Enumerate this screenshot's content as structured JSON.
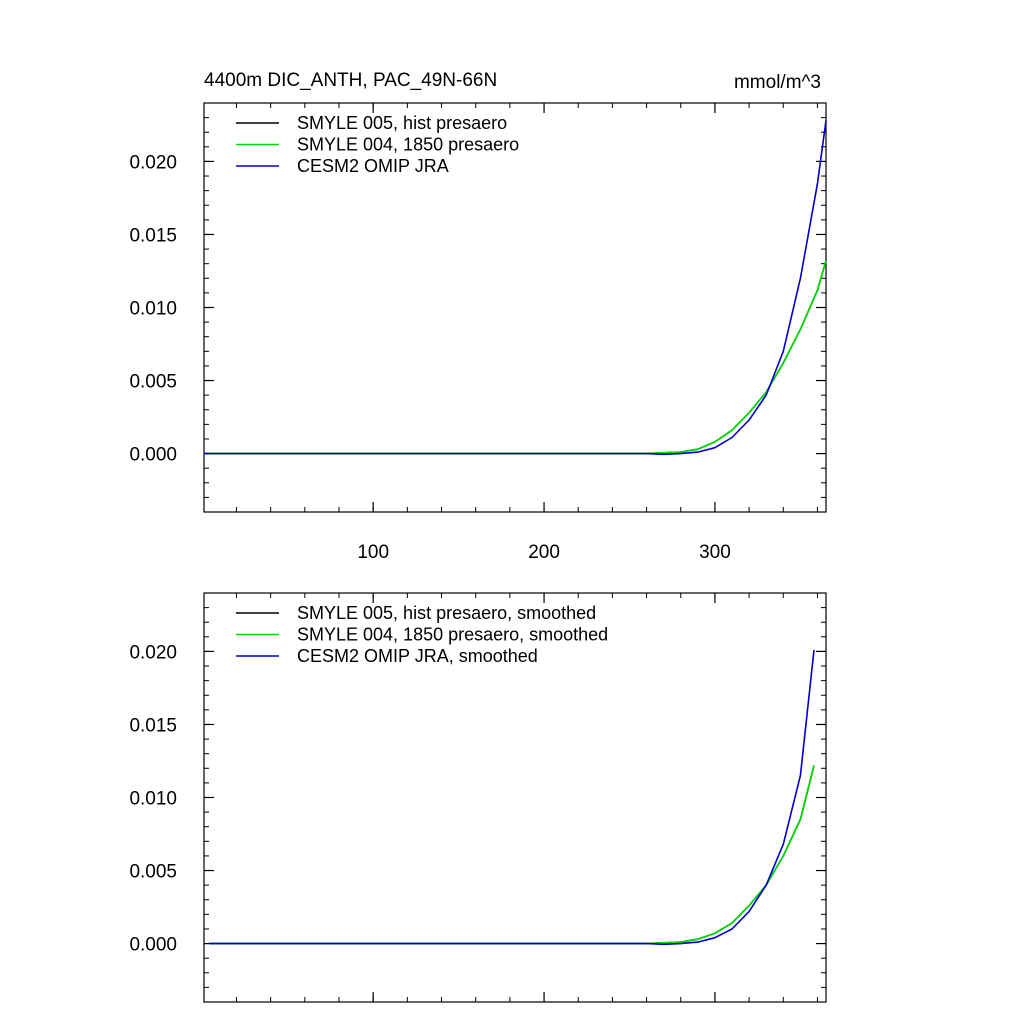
{
  "chart_data": [
    {
      "type": "line",
      "title": "4400m DIC_ANTH, PAC_49N-66N",
      "units": "mmol/m^3",
      "xlim": [
        1,
        365
      ],
      "ylim": [
        -0.004,
        0.024
      ],
      "x_ticks": [
        100,
        200,
        300
      ],
      "x_tick_labels": [
        "100",
        "200",
        "300"
      ],
      "y_ticks": [
        0.0,
        0.005,
        0.01,
        0.015,
        0.02
      ],
      "y_tick_labels": [
        "0.000",
        "0.005",
        "0.010",
        "0.015",
        "0.020"
      ],
      "legend_position": "top-left",
      "x": [
        1,
        240,
        260,
        270,
        280,
        290,
        300,
        310,
        320,
        330,
        340,
        350,
        360,
        365
      ],
      "series": [
        {
          "name": "SMYLE 005, hist presaero",
          "color": "#000000",
          "values": [
            0,
            0,
            0,
            5e-05,
            0.0001,
            0.0003,
            0.0008,
            0.0016,
            0.0028,
            0.0042,
            0.0062,
            0.0085,
            0.0112,
            0.0132
          ]
        },
        {
          "name": "SMYLE 004, 1850 presaero",
          "color": "#00dd00",
          "values": [
            0,
            0,
            0,
            5e-05,
            0.0001,
            0.0003,
            0.0008,
            0.0016,
            0.0028,
            0.0042,
            0.0062,
            0.0085,
            0.0112,
            0.0132
          ]
        },
        {
          "name": "CESM2 OMIP JRA",
          "color": "#0000cc",
          "values": [
            0,
            0,
            0,
            -5e-05,
            0,
            0.0001,
            0.0004,
            0.0011,
            0.0023,
            0.004,
            0.007,
            0.012,
            0.0185,
            0.0228
          ]
        }
      ]
    },
    {
      "type": "line",
      "xlim": [
        1,
        365
      ],
      "ylim": [
        -0.004,
        0.024
      ],
      "x_ticks": [
        100,
        200,
        300
      ],
      "y_ticks": [
        0.0,
        0.005,
        0.01,
        0.015,
        0.02
      ],
      "y_tick_labels": [
        "0.000",
        "0.005",
        "0.010",
        "0.015",
        "0.020"
      ],
      "legend_position": "top-left",
      "x": [
        4,
        240,
        260,
        270,
        280,
        290,
        300,
        310,
        320,
        330,
        340,
        350,
        358
      ],
      "series": [
        {
          "name": "SMYLE 005, hist presaero, smoothed",
          "color": "#000000",
          "values": [
            0,
            0,
            0,
            5e-05,
            0.0001,
            0.0003,
            0.0007,
            0.0014,
            0.0026,
            0.004,
            0.006,
            0.0085,
            0.0122
          ]
        },
        {
          "name": "SMYLE 004, 1850 presaero, smoothed",
          "color": "#00dd00",
          "values": [
            0,
            0,
            0,
            5e-05,
            0.0001,
            0.0003,
            0.0007,
            0.0014,
            0.0026,
            0.004,
            0.006,
            0.0085,
            0.0122
          ]
        },
        {
          "name": "CESM2 OMIP JRA, smoothed",
          "color": "#0000cc",
          "values": [
            0,
            0,
            0,
            -5e-05,
            0,
            0.0001,
            0.0004,
            0.001,
            0.0022,
            0.004,
            0.0068,
            0.0115,
            0.0201
          ]
        }
      ]
    }
  ]
}
